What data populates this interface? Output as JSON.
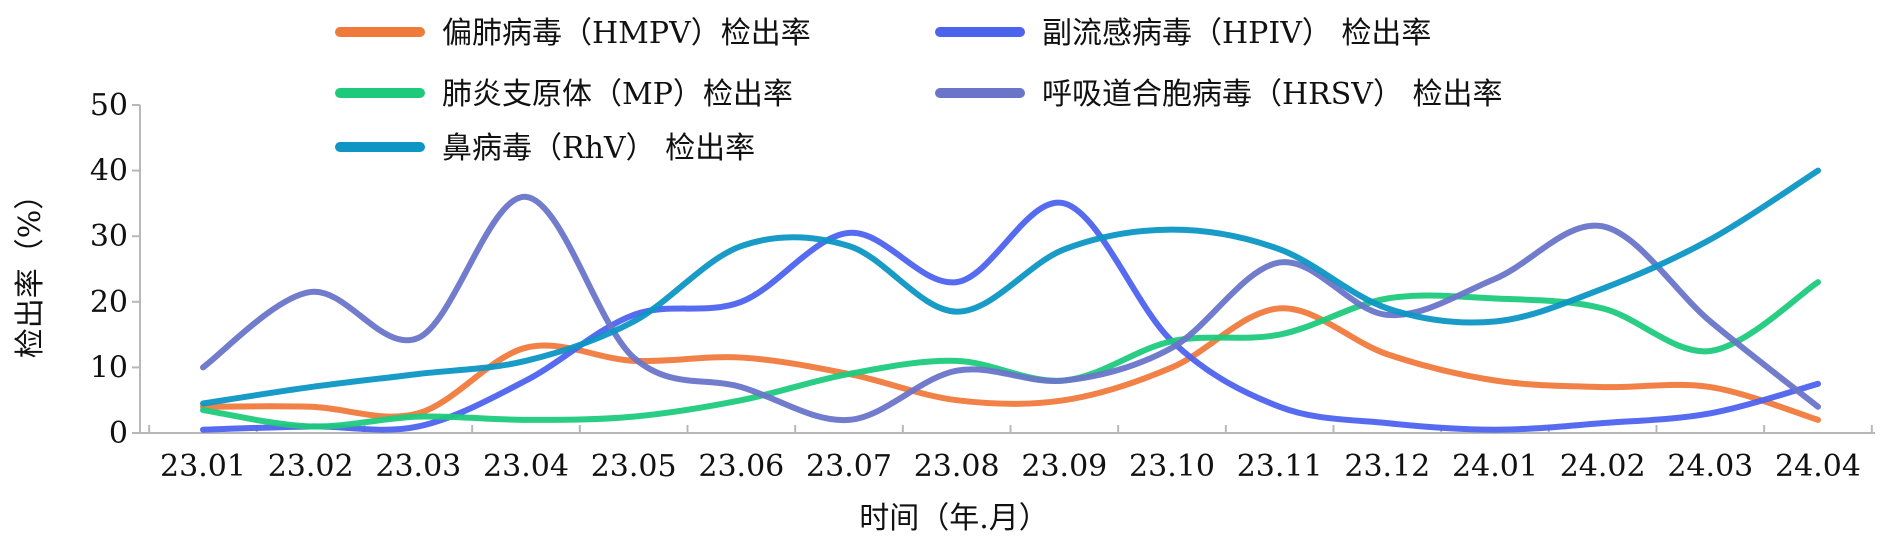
{
  "chart_data": {
    "type": "line",
    "categories": [
      "23.01",
      "23.02",
      "23.03",
      "23.04",
      "23.05",
      "23.06",
      "23.07",
      "23.08",
      "23.09",
      "23.10",
      "23.11",
      "23.12",
      "24.01",
      "24.02",
      "24.03",
      "24.04"
    ],
    "xlabel": "时间（年.月）",
    "ylabel": "检出率（%）",
    "ylim": [
      0,
      50
    ],
    "yticks": [
      0,
      10,
      20,
      30,
      40,
      50
    ],
    "grid": false,
    "legend_position": "top",
    "series": [
      {
        "name": "偏肺病毒（HMPV）检出率",
        "color": "#f07a3c",
        "values": [
          4,
          4,
          3,
          13,
          11,
          11.5,
          9,
          5,
          5,
          10,
          19,
          12,
          8,
          7,
          7,
          2
        ]
      },
      {
        "name": "副流感病毒（HPIV） 检出率",
        "color": "#4d63ee",
        "values": [
          0.5,
          1,
          1,
          8,
          18,
          20,
          30.5,
          23,
          35,
          14,
          4,
          1.5,
          0.5,
          1.5,
          3,
          7.5
        ]
      },
      {
        "name": "肺炎支原体（MP）检出率",
        "color": "#1dca7c",
        "values": [
          3.5,
          1,
          2.5,
          2,
          2.5,
          5,
          9,
          11,
          8,
          14,
          15,
          20.5,
          20.5,
          19,
          12.5,
          23
        ]
      },
      {
        "name": "呼吸道合胞病毒（HRSV） 检出率",
        "color": "#6a75c9",
        "values": [
          10,
          21.5,
          14.5,
          36,
          11.5,
          7,
          2,
          9.5,
          8,
          13,
          26,
          18,
          23.5,
          31.5,
          17,
          4
        ]
      },
      {
        "name": "鼻病毒（RhV） 检出率",
        "color": "#0d96c4",
        "values": [
          4.5,
          7,
          9,
          11,
          17,
          28.5,
          28.5,
          18.5,
          28,
          31,
          28,
          19,
          17,
          22,
          29.5,
          40
        ]
      }
    ]
  }
}
